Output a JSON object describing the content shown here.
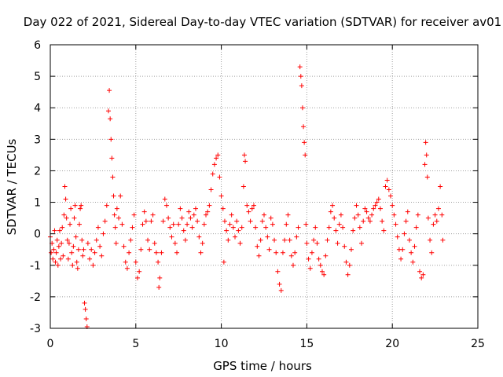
{
  "chart_data": {
    "type": "scatter",
    "title": "Day 022 of 2021, Sidereal Day-to-day VTEC variation (SDTVAR) for receiver av01",
    "xlabel": "GPS time / hours",
    "ylabel": "SDTVAR / TECUs",
    "xlim": [
      0,
      25
    ],
    "ylim": [
      -3,
      6
    ],
    "x_ticks": [
      0,
      5,
      10,
      15,
      20,
      25
    ],
    "y_ticks": [
      -3,
      -2,
      -1,
      0,
      1,
      2,
      3,
      4,
      5,
      6
    ],
    "grid": true,
    "legend": "none",
    "marker": "+",
    "series": [
      {
        "name": "SDTVAR av01",
        "color": "#ff0000",
        "description": "Approximate digitised trace of dense '+' markers; y values in TECU, x in GPS hours",
        "points": [
          [
            0.0,
            -0.1
          ],
          [
            0.05,
            -0.6
          ],
          [
            0.1,
            -0.3
          ],
          [
            0.15,
            -0.8
          ],
          [
            0.2,
            -0.5
          ],
          [
            0.25,
            0.1
          ],
          [
            0.3,
            -0.9
          ],
          [
            0.35,
            -0.6
          ],
          [
            0.4,
            -0.2
          ],
          [
            0.45,
            -1.0
          ],
          [
            0.5,
            -0.4
          ],
          [
            0.55,
            0.1
          ],
          [
            0.6,
            -0.8
          ],
          [
            0.65,
            -0.3
          ],
          [
            0.7,
            0.2
          ],
          [
            0.75,
            -0.7
          ],
          [
            0.8,
            0.6
          ],
          [
            0.85,
            1.5
          ],
          [
            0.9,
            1.1
          ],
          [
            0.95,
            0.5
          ],
          [
            1.0,
            -0.2
          ],
          [
            1.05,
            -0.8
          ],
          [
            1.1,
            -0.3
          ],
          [
            1.15,
            0.3
          ],
          [
            1.2,
            0.8
          ],
          [
            1.25,
            -0.6
          ],
          [
            1.3,
            -1.0
          ],
          [
            1.35,
            -0.4
          ],
          [
            1.4,
            0.5
          ],
          [
            1.45,
            0.9
          ],
          [
            1.5,
            -0.1
          ],
          [
            1.55,
            -0.9
          ],
          [
            1.6,
            -1.1
          ],
          [
            1.65,
            -0.5
          ],
          [
            1.7,
            0.3
          ],
          [
            1.75,
            0.8
          ],
          [
            1.8,
            0.9
          ],
          [
            1.85,
            -0.2
          ],
          [
            1.9,
            -0.7
          ],
          [
            1.95,
            -0.5
          ],
          [
            2.0,
            -2.2
          ],
          [
            2.05,
            -2.4
          ],
          [
            2.1,
            -2.7
          ],
          [
            2.15,
            -2.95
          ],
          [
            2.2,
            -0.3
          ],
          [
            2.3,
            -0.8
          ],
          [
            2.4,
            -0.5
          ],
          [
            2.5,
            -1.0
          ],
          [
            2.6,
            -0.6
          ],
          [
            2.7,
            -0.2
          ],
          [
            2.8,
            0.2
          ],
          [
            2.9,
            -0.4
          ],
          [
            3.0,
            -0.7
          ],
          [
            3.1,
            0.0
          ],
          [
            3.2,
            0.4
          ],
          [
            3.3,
            0.9
          ],
          [
            3.4,
            3.9
          ],
          [
            3.45,
            4.55
          ],
          [
            3.5,
            3.65
          ],
          [
            3.55,
            3.0
          ],
          [
            3.6,
            2.4
          ],
          [
            3.65,
            1.8
          ],
          [
            3.7,
            1.2
          ],
          [
            3.75,
            0.6
          ],
          [
            3.8,
            0.2
          ],
          [
            3.85,
            -0.3
          ],
          [
            3.9,
            0.8
          ],
          [
            4.0,
            0.5
          ],
          [
            4.1,
            1.2
          ],
          [
            4.2,
            0.3
          ],
          [
            4.3,
            -0.4
          ],
          [
            4.4,
            -0.9
          ],
          [
            4.5,
            -1.1
          ],
          [
            4.6,
            -0.6
          ],
          [
            4.7,
            -0.2
          ],
          [
            4.8,
            0.2
          ],
          [
            4.9,
            0.6
          ],
          [
            5.0,
            -0.9
          ],
          [
            5.1,
            -1.4
          ],
          [
            5.2,
            -1.2
          ],
          [
            5.3,
            -0.5
          ],
          [
            5.4,
            0.3
          ],
          [
            5.5,
            0.7
          ],
          [
            5.6,
            0.4
          ],
          [
            5.7,
            -0.2
          ],
          [
            5.8,
            -0.5
          ],
          [
            5.9,
            0.4
          ],
          [
            6.0,
            0.6
          ],
          [
            6.1,
            -0.3
          ],
          [
            6.2,
            -0.6
          ],
          [
            6.3,
            -0.9
          ],
          [
            6.35,
            -1.7
          ],
          [
            6.4,
            -1.4
          ],
          [
            6.5,
            -0.6
          ],
          [
            6.6,
            0.4
          ],
          [
            6.7,
            1.1
          ],
          [
            6.8,
            0.9
          ],
          [
            6.9,
            0.5
          ],
          [
            7.0,
            0.2
          ],
          [
            7.1,
            -0.1
          ],
          [
            7.2,
            0.3
          ],
          [
            7.3,
            -0.3
          ],
          [
            7.4,
            -0.6
          ],
          [
            7.5,
            0.3
          ],
          [
            7.6,
            0.8
          ],
          [
            7.7,
            0.5
          ],
          [
            7.8,
            0.1
          ],
          [
            7.9,
            -0.2
          ],
          [
            8.0,
            0.3
          ],
          [
            8.1,
            0.7
          ],
          [
            8.2,
            0.5
          ],
          [
            8.3,
            0.2
          ],
          [
            8.4,
            0.6
          ],
          [
            8.5,
            0.8
          ],
          [
            8.6,
            0.4
          ],
          [
            8.7,
            -0.1
          ],
          [
            8.8,
            -0.6
          ],
          [
            8.9,
            -0.3
          ],
          [
            9.0,
            0.3
          ],
          [
            9.1,
            0.6
          ],
          [
            9.2,
            0.7
          ],
          [
            9.3,
            0.9
          ],
          [
            9.4,
            1.4
          ],
          [
            9.5,
            1.9
          ],
          [
            9.6,
            2.2
          ],
          [
            9.7,
            2.4
          ],
          [
            9.8,
            2.5
          ],
          [
            9.9,
            1.8
          ],
          [
            10.0,
            1.2
          ],
          [
            10.1,
            0.8
          ],
          [
            10.15,
            -0.9
          ],
          [
            10.2,
            0.4
          ],
          [
            10.3,
            0.1
          ],
          [
            10.4,
            -0.2
          ],
          [
            10.5,
            0.3
          ],
          [
            10.6,
            0.6
          ],
          [
            10.7,
            0.2
          ],
          [
            10.8,
            -0.1
          ],
          [
            10.9,
            0.4
          ],
          [
            11.0,
            0.1
          ],
          [
            11.1,
            -0.3
          ],
          [
            11.2,
            0.2
          ],
          [
            11.3,
            1.5
          ],
          [
            11.35,
            2.5
          ],
          [
            11.4,
            2.3
          ],
          [
            11.5,
            0.9
          ],
          [
            11.6,
            0.7
          ],
          [
            11.7,
            0.4
          ],
          [
            11.8,
            0.8
          ],
          [
            11.9,
            0.9
          ],
          [
            12.0,
            0.2
          ],
          [
            12.1,
            -0.4
          ],
          [
            12.2,
            -0.7
          ],
          [
            12.3,
            -0.2
          ],
          [
            12.4,
            0.4
          ],
          [
            12.5,
            0.6
          ],
          [
            12.6,
            0.2
          ],
          [
            12.7,
            -0.1
          ],
          [
            12.8,
            -0.5
          ],
          [
            12.9,
            0.5
          ],
          [
            13.0,
            0.3
          ],
          [
            13.1,
            -0.2
          ],
          [
            13.2,
            -0.6
          ],
          [
            13.3,
            -1.2
          ],
          [
            13.4,
            -1.6
          ],
          [
            13.5,
            -1.8
          ],
          [
            13.6,
            -0.6
          ],
          [
            13.7,
            -0.2
          ],
          [
            13.8,
            0.3
          ],
          [
            13.9,
            0.6
          ],
          [
            14.0,
            -0.2
          ],
          [
            14.1,
            -0.7
          ],
          [
            14.2,
            -1.0
          ],
          [
            14.3,
            -0.6
          ],
          [
            14.4,
            -0.1
          ],
          [
            14.5,
            0.2
          ],
          [
            14.6,
            5.3
          ],
          [
            14.65,
            5.0
          ],
          [
            14.7,
            4.7
          ],
          [
            14.75,
            4.0
          ],
          [
            14.8,
            3.4
          ],
          [
            14.85,
            2.9
          ],
          [
            14.9,
            2.5
          ],
          [
            14.95,
            0.3
          ],
          [
            15.0,
            -0.3
          ],
          [
            15.1,
            -0.8
          ],
          [
            15.2,
            -1.1
          ],
          [
            15.3,
            -0.6
          ],
          [
            15.4,
            -0.2
          ],
          [
            15.5,
            0.2
          ],
          [
            15.6,
            -0.3
          ],
          [
            15.7,
            -0.8
          ],
          [
            15.8,
            -1.0
          ],
          [
            15.9,
            -1.2
          ],
          [
            16.0,
            -1.3
          ],
          [
            16.1,
            -0.7
          ],
          [
            16.2,
            -0.2
          ],
          [
            16.3,
            0.2
          ],
          [
            16.4,
            0.7
          ],
          [
            16.5,
            0.9
          ],
          [
            16.6,
            0.5
          ],
          [
            16.7,
            0.1
          ],
          [
            16.8,
            -0.3
          ],
          [
            16.9,
            0.3
          ],
          [
            17.0,
            0.6
          ],
          [
            17.1,
            0.2
          ],
          [
            17.2,
            -0.4
          ],
          [
            17.3,
            -0.9
          ],
          [
            17.4,
            -1.3
          ],
          [
            17.5,
            -1.0
          ],
          [
            17.6,
            -0.5
          ],
          [
            17.7,
            0.1
          ],
          [
            17.8,
            0.5
          ],
          [
            17.9,
            0.9
          ],
          [
            18.0,
            0.6
          ],
          [
            18.1,
            0.2
          ],
          [
            18.2,
            -0.3
          ],
          [
            18.3,
            0.4
          ],
          [
            18.4,
            0.8
          ],
          [
            18.5,
            0.7
          ],
          [
            18.6,
            0.5
          ],
          [
            18.7,
            0.4
          ],
          [
            18.8,
            0.6
          ],
          [
            18.9,
            0.8
          ],
          [
            19.0,
            0.9
          ],
          [
            19.1,
            1.0
          ],
          [
            19.2,
            1.1
          ],
          [
            19.3,
            0.8
          ],
          [
            19.4,
            0.4
          ],
          [
            19.5,
            0.1
          ],
          [
            19.6,
            1.5
          ],
          [
            19.7,
            1.7
          ],
          [
            19.8,
            1.4
          ],
          [
            19.9,
            1.2
          ],
          [
            20.0,
            0.9
          ],
          [
            20.1,
            0.6
          ],
          [
            20.2,
            0.3
          ],
          [
            20.3,
            -0.1
          ],
          [
            20.4,
            -0.5
          ],
          [
            20.5,
            -0.8
          ],
          [
            20.6,
            -0.5
          ],
          [
            20.7,
            0.0
          ],
          [
            20.8,
            0.4
          ],
          [
            20.9,
            0.7
          ],
          [
            21.0,
            -0.2
          ],
          [
            21.1,
            -0.6
          ],
          [
            21.2,
            -0.9
          ],
          [
            21.3,
            -0.4
          ],
          [
            21.4,
            0.2
          ],
          [
            21.5,
            0.6
          ],
          [
            21.6,
            -1.2
          ],
          [
            21.7,
            -1.4
          ],
          [
            21.8,
            -1.3
          ],
          [
            21.9,
            2.2
          ],
          [
            21.95,
            2.9
          ],
          [
            22.0,
            2.5
          ],
          [
            22.05,
            1.8
          ],
          [
            22.1,
            0.5
          ],
          [
            22.2,
            -0.2
          ],
          [
            22.3,
            -0.6
          ],
          [
            22.4,
            0.3
          ],
          [
            22.5,
            0.6
          ],
          [
            22.6,
            0.4
          ],
          [
            22.7,
            0.8
          ],
          [
            22.8,
            1.5
          ],
          [
            22.9,
            0.6
          ],
          [
            22.95,
            -0.2
          ]
        ]
      }
    ]
  }
}
